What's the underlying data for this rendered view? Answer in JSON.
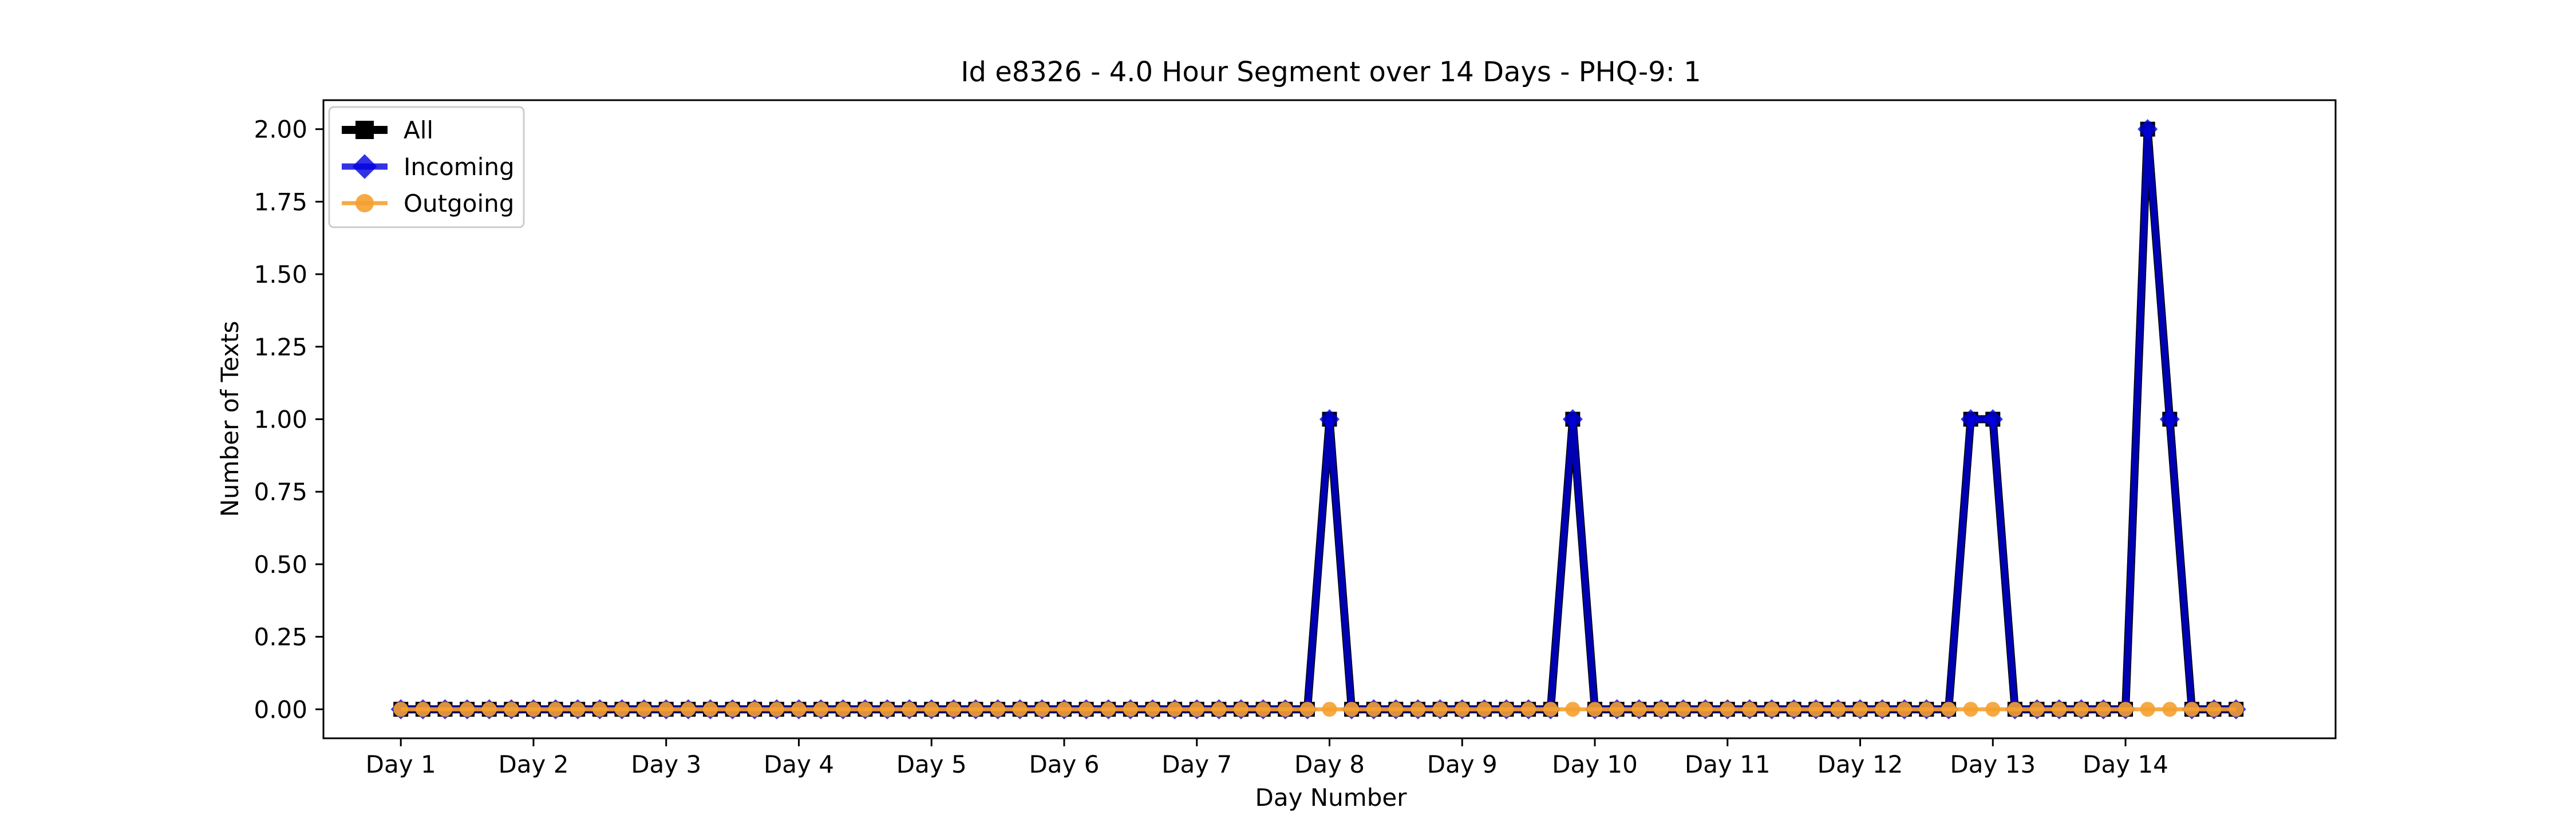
{
  "chart_data": {
    "type": "line",
    "title": "Id e8326 - 4.0 Hour Segment over 14 Days - PHQ-9: 1",
    "xlabel": "Day Number",
    "ylabel": "Number of Texts",
    "ylim": [
      -0.1,
      2.1
    ],
    "xlim": [
      -3.5,
      87.5
    ],
    "grid": false,
    "legend_position": "upper left",
    "x": [
      0,
      1,
      2,
      3,
      4,
      5,
      6,
      7,
      8,
      9,
      10,
      11,
      12,
      13,
      14,
      15,
      16,
      17,
      18,
      19,
      20,
      21,
      22,
      23,
      24,
      25,
      26,
      27,
      28,
      29,
      30,
      31,
      32,
      33,
      34,
      35,
      36,
      37,
      38,
      39,
      40,
      41,
      42,
      43,
      44,
      45,
      46,
      47,
      48,
      49,
      50,
      51,
      52,
      53,
      54,
      55,
      56,
      57,
      58,
      59,
      60,
      61,
      62,
      63,
      64,
      65,
      66,
      67,
      68,
      69,
      70,
      71,
      72,
      73,
      74,
      75,
      76,
      77,
      78,
      79,
      80,
      81,
      82,
      83
    ],
    "x_ticks": [
      {
        "pos": 0,
        "label": "Day 1"
      },
      {
        "pos": 6,
        "label": "Day 2"
      },
      {
        "pos": 12,
        "label": "Day 3"
      },
      {
        "pos": 18,
        "label": "Day 4"
      },
      {
        "pos": 24,
        "label": "Day 5"
      },
      {
        "pos": 30,
        "label": "Day 6"
      },
      {
        "pos": 36,
        "label": "Day 7"
      },
      {
        "pos": 42,
        "label": "Day 8"
      },
      {
        "pos": 48,
        "label": "Day 9"
      },
      {
        "pos": 54,
        "label": "Day 10"
      },
      {
        "pos": 60,
        "label": "Day 11"
      },
      {
        "pos": 66,
        "label": "Day 12"
      },
      {
        "pos": 72,
        "label": "Day 13"
      },
      {
        "pos": 78,
        "label": "Day 14"
      }
    ],
    "y_ticks": [
      0.0,
      0.25,
      0.5,
      0.75,
      1.0,
      1.25,
      1.5,
      1.75,
      2.0
    ],
    "y_tick_labels": [
      "0.00",
      "0.25",
      "0.50",
      "0.75",
      "1.00",
      "1.25",
      "1.50",
      "1.75",
      "2.00"
    ],
    "series": [
      {
        "name": "All",
        "color": "#000000",
        "marker": "square",
        "values": [
          0,
          0,
          0,
          0,
          0,
          0,
          0,
          0,
          0,
          0,
          0,
          0,
          0,
          0,
          0,
          0,
          0,
          0,
          0,
          0,
          0,
          0,
          0,
          0,
          0,
          0,
          0,
          0,
          0,
          0,
          0,
          0,
          0,
          0,
          0,
          0,
          0,
          0,
          0,
          0,
          0,
          0,
          1,
          0,
          0,
          0,
          0,
          0,
          0,
          0,
          0,
          0,
          0,
          1,
          0,
          0,
          0,
          0,
          0,
          0,
          0,
          0,
          0,
          0,
          0,
          0,
          0,
          0,
          0,
          0,
          0,
          1,
          1,
          0,
          0,
          0,
          0,
          0,
          0,
          2,
          1,
          0,
          0,
          0
        ]
      },
      {
        "name": "Incoming",
        "color": "#0000e0",
        "marker": "diamond",
        "values": [
          0,
          0,
          0,
          0,
          0,
          0,
          0,
          0,
          0,
          0,
          0,
          0,
          0,
          0,
          0,
          0,
          0,
          0,
          0,
          0,
          0,
          0,
          0,
          0,
          0,
          0,
          0,
          0,
          0,
          0,
          0,
          0,
          0,
          0,
          0,
          0,
          0,
          0,
          0,
          0,
          0,
          0,
          1,
          0,
          0,
          0,
          0,
          0,
          0,
          0,
          0,
          0,
          0,
          1,
          0,
          0,
          0,
          0,
          0,
          0,
          0,
          0,
          0,
          0,
          0,
          0,
          0,
          0,
          0,
          0,
          0,
          1,
          1,
          0,
          0,
          0,
          0,
          0,
          0,
          2,
          1,
          0,
          0,
          0
        ]
      },
      {
        "name": "Outgoing",
        "color": "#f5a030",
        "marker": "circle",
        "values": [
          0,
          0,
          0,
          0,
          0,
          0,
          0,
          0,
          0,
          0,
          0,
          0,
          0,
          0,
          0,
          0,
          0,
          0,
          0,
          0,
          0,
          0,
          0,
          0,
          0,
          0,
          0,
          0,
          0,
          0,
          0,
          0,
          0,
          0,
          0,
          0,
          0,
          0,
          0,
          0,
          0,
          0,
          0,
          0,
          0,
          0,
          0,
          0,
          0,
          0,
          0,
          0,
          0,
          0,
          0,
          0,
          0,
          0,
          0,
          0,
          0,
          0,
          0,
          0,
          0,
          0,
          0,
          0,
          0,
          0,
          0,
          0,
          0,
          0,
          0,
          0,
          0,
          0,
          0,
          0,
          0,
          0,
          0,
          0
        ]
      }
    ]
  }
}
